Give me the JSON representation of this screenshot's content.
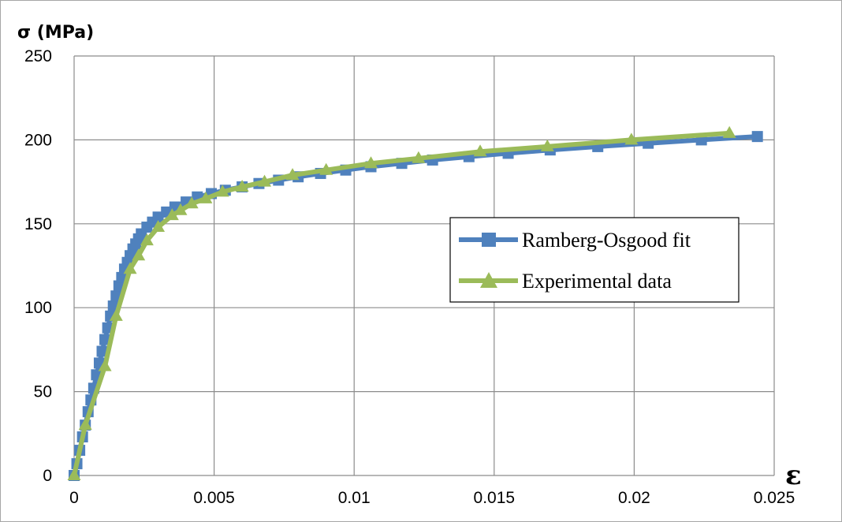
{
  "chart_data": {
    "type": "line",
    "title": "",
    "xlabel": "ε",
    "ylabel": "σ (MPa)",
    "xlim": [
      0,
      0.025
    ],
    "ylim": [
      0,
      250
    ],
    "x_ticks": [
      0,
      0.005,
      0.01,
      0.015,
      0.02,
      0.025
    ],
    "x_tick_labels": [
      "0",
      "0.005",
      "0.01",
      "0.015",
      "0.02",
      "0.025"
    ],
    "y_ticks": [
      0,
      50,
      100,
      150,
      200,
      250
    ],
    "y_tick_labels": [
      "0",
      "50",
      "100",
      "150",
      "200",
      "250"
    ],
    "grid": true,
    "legend_position": "right",
    "series": [
      {
        "name": "Ramberg-Osgood fit",
        "color": "#4f81bd",
        "marker": "square",
        "points": [
          [
            0,
            0
          ],
          [
            0.0001,
            7
          ],
          [
            0.0002,
            15
          ],
          [
            0.0003,
            23
          ],
          [
            0.0004,
            30
          ],
          [
            0.0005,
            38
          ],
          [
            0.0006,
            45
          ],
          [
            0.0007,
            52
          ],
          [
            0.0008,
            60
          ],
          [
            0.0009,
            67
          ],
          [
            0.001,
            74
          ],
          [
            0.0011,
            81
          ],
          [
            0.0012,
            88
          ],
          [
            0.0013,
            95
          ],
          [
            0.0014,
            101
          ],
          [
            0.0015,
            107
          ],
          [
            0.0016,
            113
          ],
          [
            0.0017,
            118
          ],
          [
            0.0018,
            123
          ],
          [
            0.0019,
            127
          ],
          [
            0.002,
            131
          ],
          [
            0.0021,
            135
          ],
          [
            0.0022,
            138
          ],
          [
            0.0023,
            141
          ],
          [
            0.0024,
            144
          ],
          [
            0.0026,
            148
          ],
          [
            0.0028,
            151
          ],
          [
            0.003,
            154
          ],
          [
            0.0033,
            157
          ],
          [
            0.0036,
            160
          ],
          [
            0.004,
            163
          ],
          [
            0.0044,
            166
          ],
          [
            0.0049,
            168
          ],
          [
            0.0054,
            170
          ],
          [
            0.006,
            172
          ],
          [
            0.0066,
            174
          ],
          [
            0.0073,
            176
          ],
          [
            0.008,
            178
          ],
          [
            0.0088,
            180
          ],
          [
            0.0097,
            182
          ],
          [
            0.0106,
            184
          ],
          [
            0.0117,
            186
          ],
          [
            0.0128,
            188
          ],
          [
            0.0141,
            190
          ],
          [
            0.0155,
            192
          ],
          [
            0.017,
            194
          ],
          [
            0.0187,
            196
          ],
          [
            0.0205,
            198
          ],
          [
            0.0224,
            200
          ],
          [
            0.0244,
            202
          ]
        ]
      },
      {
        "name": "Experimental data",
        "color": "#9bbb59",
        "marker": "triangle",
        "points": [
          [
            0,
            0
          ],
          [
            0.0004,
            30
          ],
          [
            0.0011,
            65
          ],
          [
            0.0015,
            95
          ],
          [
            0.002,
            123
          ],
          [
            0.0023,
            131
          ],
          [
            0.0026,
            140
          ],
          [
            0.003,
            148
          ],
          [
            0.0035,
            155
          ],
          [
            0.0038,
            158
          ],
          [
            0.0042,
            162
          ],
          [
            0.0047,
            165
          ],
          [
            0.0053,
            169
          ],
          [
            0.006,
            172
          ],
          [
            0.0068,
            175
          ],
          [
            0.0078,
            179
          ],
          [
            0.009,
            182
          ],
          [
            0.0106,
            186
          ],
          [
            0.0123,
            189
          ],
          [
            0.0145,
            193
          ],
          [
            0.0169,
            196
          ],
          [
            0.0199,
            200
          ],
          [
            0.0234,
            204
          ]
        ]
      }
    ]
  }
}
